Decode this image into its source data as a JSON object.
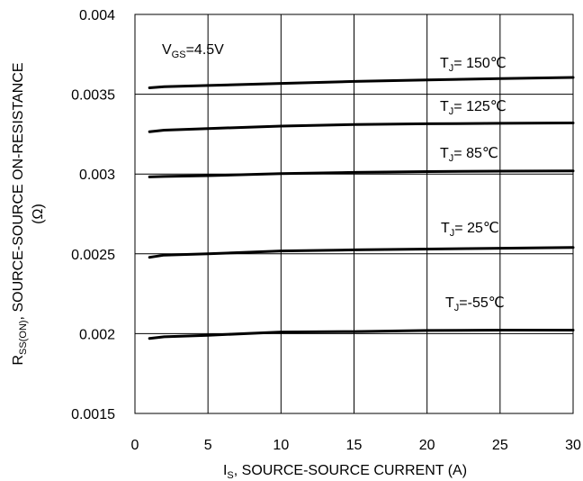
{
  "chart_data": {
    "type": "line",
    "xlabel": {
      "main": "I",
      "sub": "S",
      "rest": ", SOURCE-SOURCE CURRENT (A)"
    },
    "ylabel": {
      "main": "R",
      "sub": "SS(ON)",
      "rest": ", SOURCE-SOURCE ON-RESISTANCE",
      "line2": "(Ω)"
    },
    "xlim": [
      0,
      30
    ],
    "ylim": [
      0.0015,
      0.004
    ],
    "x_ticks": [
      "0",
      "5",
      "10",
      "15",
      "20",
      "25",
      "30"
    ],
    "y_ticks": [
      "0.0015",
      "0.002",
      "0.0025",
      "0.003",
      "0.0035",
      "0.004"
    ],
    "grid": true,
    "condition": {
      "main": "V",
      "sub": "GS",
      "rest": "=4.5V"
    },
    "series": [
      {
        "name": "T_J= 150℃",
        "label": {
          "main": "T",
          "sub": "J",
          "rest": "= 150℃"
        },
        "x": [
          1,
          2,
          5,
          10,
          15,
          20,
          25,
          30
        ],
        "y": [
          0.00354,
          0.003547,
          0.003555,
          0.003568,
          0.00358,
          0.00359,
          0.003598,
          0.003605
        ]
      },
      {
        "name": "T_J= 125℃",
        "label": {
          "main": "T",
          "sub": "J",
          "rest": "= 125℃"
        },
        "x": [
          1,
          2,
          5,
          10,
          15,
          20,
          25,
          30
        ],
        "y": [
          0.003265,
          0.003275,
          0.003285,
          0.0033,
          0.00331,
          0.003315,
          0.003318,
          0.00332
        ]
      },
      {
        "name": "T_J= 85℃",
        "label": {
          "main": "T",
          "sub": "J",
          "rest": "= 85℃"
        },
        "x": [
          1,
          2,
          5,
          10,
          15,
          20,
          25,
          30
        ],
        "y": [
          0.002982,
          0.002985,
          0.00299,
          0.003003,
          0.00301,
          0.003015,
          0.003018,
          0.00302
        ]
      },
      {
        "name": "T_J= 25℃",
        "label": {
          "main": "T",
          "sub": "J",
          "rest": "= 25℃"
        },
        "x": [
          1,
          2,
          5,
          10,
          15,
          20,
          25,
          30
        ],
        "y": [
          0.002478,
          0.002492,
          0.0025,
          0.002518,
          0.002525,
          0.00253,
          0.002535,
          0.00254
        ]
      },
      {
        "name": "T_J=-55℃",
        "label": {
          "main": "T",
          "sub": "J",
          "rest": "=-55℃"
        },
        "x": [
          1,
          2,
          5,
          10,
          15,
          20,
          25,
          30
        ],
        "y": [
          0.00197,
          0.00198,
          0.00199,
          0.00201,
          0.002013,
          0.00202,
          0.002022,
          0.002022
        ]
      }
    ]
  }
}
